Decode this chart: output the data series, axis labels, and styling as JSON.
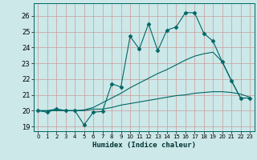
{
  "title": "",
  "xlabel": "Humidex (Indice chaleur)",
  "bg_color": "#cce8e8",
  "grid_color": "#cc9999",
  "line_color": "#006666",
  "xlim": [
    -0.5,
    23.5
  ],
  "ylim": [
    18.7,
    26.8
  ],
  "yticks": [
    19,
    20,
    21,
    22,
    23,
    24,
    25,
    26
  ],
  "xticks": [
    0,
    1,
    2,
    3,
    4,
    5,
    6,
    7,
    8,
    9,
    10,
    11,
    12,
    13,
    14,
    15,
    16,
    17,
    18,
    19,
    20,
    21,
    22,
    23
  ],
  "line1_x": [
    0,
    1,
    2,
    3,
    4,
    5,
    6,
    7,
    8,
    9,
    10,
    11,
    12,
    13,
    14,
    15,
    16,
    17,
    18,
    19,
    20,
    21,
    22,
    23
  ],
  "line1_y": [
    20.0,
    19.9,
    20.1,
    20.0,
    20.0,
    19.1,
    19.9,
    19.95,
    21.7,
    21.5,
    24.7,
    23.9,
    25.5,
    23.8,
    25.1,
    25.3,
    26.2,
    26.2,
    24.9,
    24.4,
    23.1,
    21.9,
    20.8,
    20.8
  ],
  "line2_x": [
    0,
    1,
    2,
    3,
    4,
    5,
    6,
    7,
    8,
    9,
    10,
    11,
    12,
    13,
    14,
    15,
    16,
    17,
    18,
    19,
    20,
    21,
    22,
    23
  ],
  "line2_y": [
    20.0,
    20.0,
    20.1,
    20.0,
    20.0,
    20.05,
    20.2,
    20.5,
    20.8,
    21.1,
    21.45,
    21.75,
    22.05,
    22.35,
    22.6,
    22.9,
    23.2,
    23.45,
    23.6,
    23.7,
    23.1,
    21.9,
    20.8,
    20.8
  ],
  "line3_x": [
    0,
    1,
    2,
    3,
    4,
    5,
    6,
    7,
    8,
    9,
    10,
    11,
    12,
    13,
    14,
    15,
    16,
    17,
    18,
    19,
    20,
    21,
    22,
    23
  ],
  "line3_y": [
    20.0,
    20.0,
    20.0,
    20.0,
    20.0,
    20.0,
    20.1,
    20.1,
    20.2,
    20.35,
    20.45,
    20.55,
    20.65,
    20.75,
    20.85,
    20.95,
    21.0,
    21.1,
    21.15,
    21.2,
    21.2,
    21.15,
    21.05,
    20.85
  ]
}
